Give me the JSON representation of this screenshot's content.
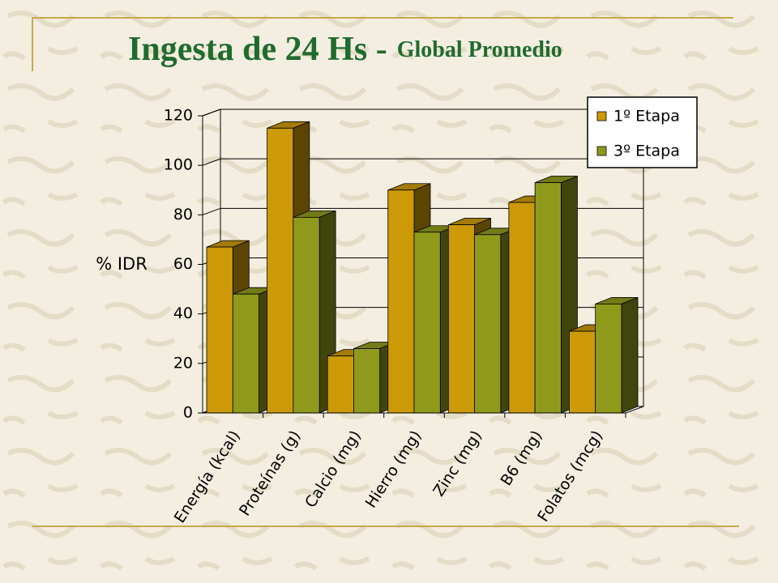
{
  "chart_data": {
    "type": "bar3d",
    "title": "Ingesta de 24 Hs -",
    "subtitle": "Global Promedio",
    "y_label": "% IDR",
    "categories": [
      "Energía (kcal)",
      "Proteínas (g)",
      "Calcio (mg)",
      "Hierro (mg)",
      "Zinc (mg)",
      "B6 (mg)",
      "Folatos (mcg)"
    ],
    "series": [
      {
        "name": "1º Etapa",
        "color": "#cc9a06",
        "values": [
          67,
          115,
          23,
          90,
          76,
          85,
          33
        ]
      },
      {
        "name": "3º Etapa",
        "color": "#8f9a1c",
        "values": [
          48,
          79,
          26,
          73,
          72,
          93,
          44
        ]
      }
    ],
    "ylim": [
      0,
      120
    ],
    "yticks": [
      0,
      20,
      40,
      60,
      80,
      100,
      120
    ],
    "grid": true,
    "legend": "top-right"
  }
}
